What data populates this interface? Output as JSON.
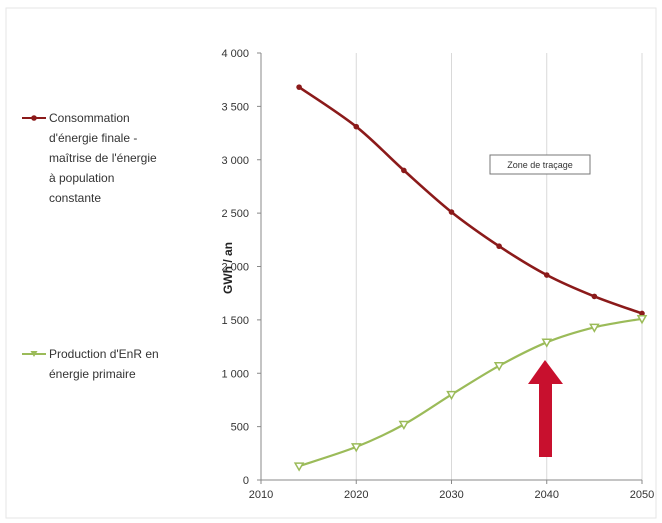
{
  "chart_data": {
    "type": "line",
    "x": [
      2014,
      2020,
      2025,
      2030,
      2035,
      2040,
      2045,
      2050
    ],
    "series": [
      {
        "name": "Consommation d'énergie finale - maîtrise de l'énergie à population constante",
        "legend_lines": [
          "Consommation",
          "d'énergie finale -",
          "maîtrise de l'énergie",
          "à population",
          "constante"
        ],
        "color": "#8b1a1a",
        "values": [
          3680,
          3310,
          2900,
          2510,
          2190,
          1920,
          1720,
          1560
        ]
      },
      {
        "name": "Production d'EnR en énergie primaire",
        "legend_lines": [
          "Production d'EnR en",
          "énergie primaire"
        ],
        "color": "#9bbb59",
        "values": [
          130,
          310,
          520,
          800,
          1070,
          1290,
          1430,
          1510
        ]
      }
    ],
    "xticks": [
      "2010",
      "2020",
      "2030",
      "2040",
      "2050"
    ],
    "yticks": [
      "0",
      "500",
      "1 000",
      "1 500",
      "2 000",
      "2 500",
      "3 000",
      "3 500",
      "4 000"
    ],
    "xlim": [
      2010,
      2050
    ],
    "ylim": [
      0,
      4000
    ],
    "ylabel": "GWh / an",
    "xlabel": "",
    "title": "",
    "grid": "vertical",
    "legend_position": "left",
    "tooltip": "Zone de traçage",
    "annotation": {
      "type": "arrow",
      "color": "#c8102e",
      "x": 2040,
      "pointing": "up"
    }
  }
}
